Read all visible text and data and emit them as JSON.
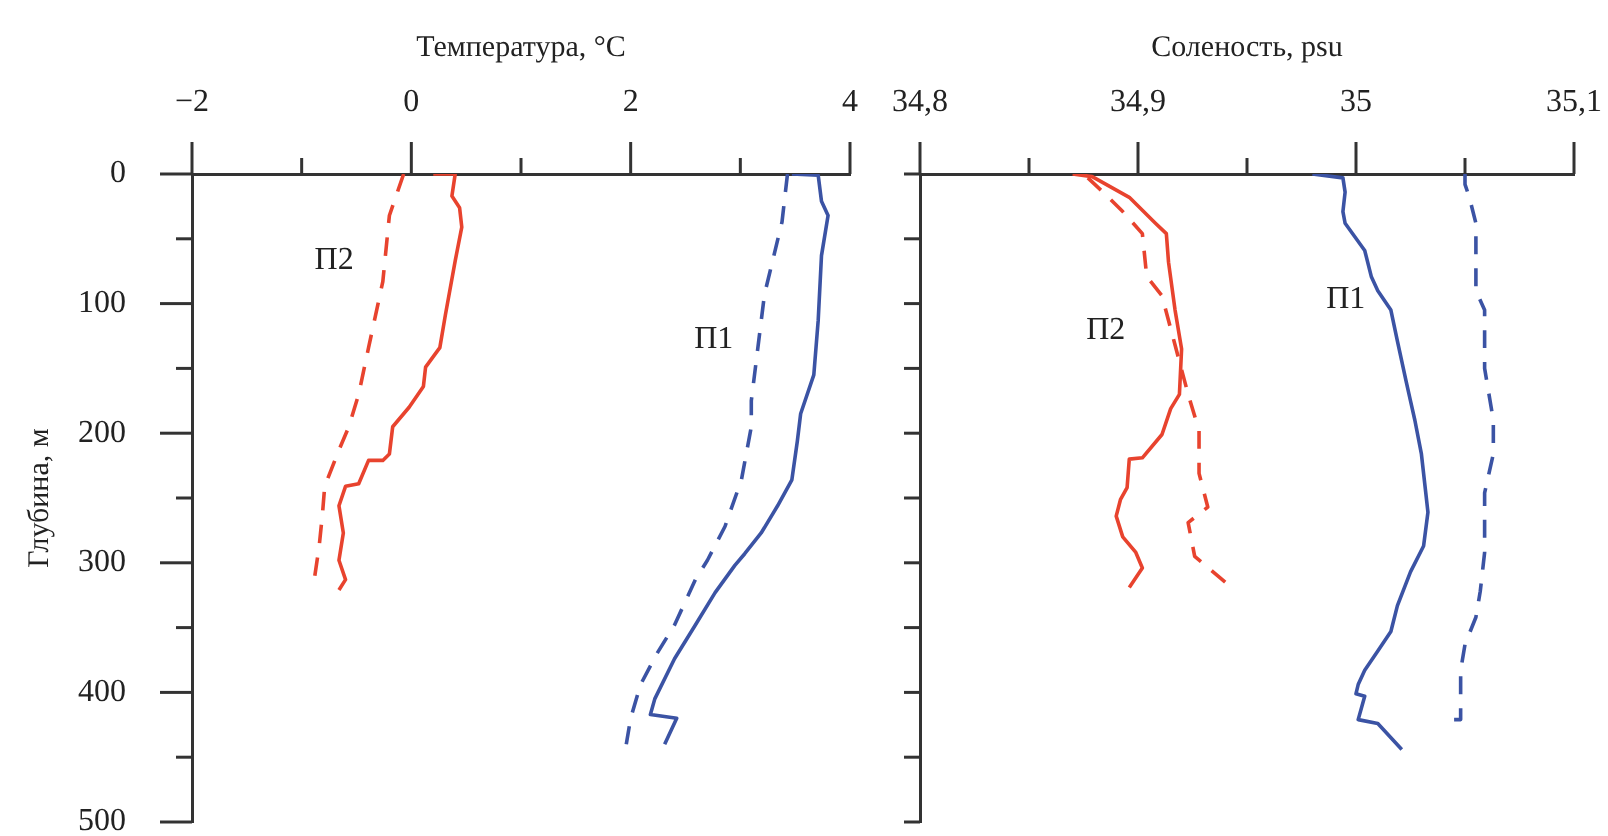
{
  "chart_data": [
    {
      "type": "line",
      "xlabel": "Температура, °C",
      "ylabel": "Глубина, м",
      "marker": "none",
      "xlim": [
        -2,
        4
      ],
      "xticks": [
        {
          "value": -2,
          "label": "−2"
        },
        {
          "value": -1,
          "label": null
        },
        0,
        {
          "value": 1,
          "label": null
        },
        2,
        {
          "value": 3,
          "label": null
        },
        4
      ],
      "ylim": [
        500,
        0
      ],
      "yticks": [
        0,
        {
          "value": 50,
          "label": null
        },
        100,
        {
          "value": 150,
          "label": null
        },
        200,
        {
          "value": 250,
          "label": null
        },
        300,
        {
          "value": 350,
          "label": null
        },
        400,
        {
          "value": 450,
          "label": null
        },
        500
      ],
      "series": [
        {
          "color": "#e8432e",
          "line_style": "solid",
          "x": [
            0.2,
            0.4,
            0.37,
            0.44,
            0.46,
            0.4,
            0.31,
            0.26,
            0.13,
            0.11,
            -0.02,
            -0.17,
            -0.2,
            -0.26,
            -0.39,
            -0.48,
            -0.6,
            -0.66,
            -0.62,
            -0.66,
            -0.6,
            -0.66
          ],
          "values": [
            0,
            0,
            17,
            26,
            41,
            67,
            109,
            134,
            149,
            164,
            180,
            195,
            216,
            221,
            221,
            239,
            241,
            256,
            277,
            298,
            313,
            321
          ]
        },
        {
          "color": "#e8432e",
          "line_style": "dashed",
          "x": [
            -0.07,
            -0.2,
            -0.26,
            -0.39,
            -0.48,
            -0.57,
            -0.66,
            -0.79,
            -0.81,
            -0.84,
            -0.88
          ],
          "values": [
            0,
            32,
            83,
            134,
            170,
            195,
            213,
            241,
            262,
            287,
            310
          ]
        },
        {
          "color": "#3b53a4",
          "line_style": "solid",
          "x": [
            3.47,
            3.71,
            3.74,
            3.8,
            3.74,
            3.71,
            3.67,
            3.55,
            3.52,
            3.47,
            3.34,
            3.19,
            3.04,
            2.95,
            2.77,
            2.59,
            2.4,
            2.22,
            2.18,
            2.42,
            2.31
          ],
          "values": [
            0,
            1,
            21,
            32,
            63,
            113,
            155,
            185,
            206,
            236,
            256,
            277,
            293,
            302,
            323,
            348,
            374,
            405,
            417,
            420,
            440
          ]
        },
        {
          "color": "#3b53a4",
          "line_style": "dashed",
          "x": [
            3.43,
            3.38,
            3.22,
            3.1,
            3.1,
            3.01,
            2.86,
            2.7,
            2.59,
            2.4,
            2.24,
            2.09,
            2.0,
            1.96
          ],
          "values": [
            0,
            37,
            93,
            175,
            195,
            236,
            272,
            298,
            313,
            348,
            370,
            394,
            420,
            440
          ]
        }
      ],
      "annotations": [
        "П2",
        "П1"
      ]
    },
    {
      "type": "line",
      "xlabel": "Соленость, psu",
      "marker": "none",
      "tick_labels": "x",
      "xlim": [
        34.8,
        35.1
      ],
      "xticks": [
        {
          "value": 34.8,
          "label": "34,8"
        },
        {
          "value": 34.85,
          "label": null
        },
        {
          "value": 34.9,
          "label": "34,9"
        },
        {
          "value": 34.95,
          "label": null
        },
        35,
        {
          "value": 35.05,
          "label": null
        },
        {
          "value": 35.1,
          "label": "35,1"
        }
      ],
      "ylim": [
        500,
        0
      ],
      "yticks": [
        {
          "value": 0,
          "label": null
        },
        {
          "value": 50,
          "label": null
        },
        {
          "value": 100,
          "label": null
        },
        {
          "value": 150,
          "label": null
        },
        {
          "value": 200,
          "label": null
        },
        {
          "value": 250,
          "label": null
        },
        {
          "value": 300,
          "label": null
        },
        {
          "value": 350,
          "label": null
        },
        {
          "value": 400,
          "label": null
        },
        {
          "value": 450,
          "label": null
        },
        {
          "value": 500,
          "label": null
        }
      ],
      "series": [
        {
          "color": "#e8432e",
          "line_style": "solid",
          "x": [
            34.87,
            34.879,
            34.896,
            34.908,
            34.913,
            34.914,
            34.917,
            34.92,
            34.919,
            34.915,
            34.911,
            34.902,
            34.896,
            34.895,
            34.892,
            34.89,
            34.893,
            34.899,
            34.902,
            34.896
          ],
          "values": [
            0,
            2,
            18,
            38,
            46,
            68,
            105,
            135,
            170,
            181,
            201,
            219,
            220,
            242,
            251,
            264,
            280,
            292,
            304,
            319
          ]
        },
        {
          "color": "#e8432e",
          "line_style": "dashed",
          "x": [
            34.877,
            34.884,
            34.893,
            34.902,
            34.904,
            34.911,
            34.917,
            34.923,
            34.928,
            34.928,
            34.932,
            34.923,
            34.926,
            34.94
          ],
          "values": [
            3,
            14,
            29,
            46,
            79,
            94,
            132,
            170,
            198,
            231,
            257,
            269,
            295,
            315
          ]
        },
        {
          "color": "#3b53a4",
          "line_style": "solid",
          "x": [
            34.98,
            34.994,
            34.995,
            34.994,
            34.995,
            35.004,
            35.007,
            35.01,
            35.016,
            35.019,
            35.023,
            35.025,
            35.027,
            35.03,
            35.032,
            35.033,
            35.031,
            35.025,
            35.019,
            35.016,
            35.01,
            35.004,
            35.001,
            35.0,
            35.004,
            35.001,
            35.01,
            35.021
          ],
          "values": [
            0,
            3,
            14,
            29,
            38,
            59,
            79,
            90,
            105,
            129,
            160,
            175,
            190,
            216,
            246,
            261,
            287,
            307,
            333,
            353,
            368,
            383,
            394,
            401,
            403,
            421,
            424,
            444
          ]
        },
        {
          "color": "#3b53a4",
          "line_style": "dashed",
          "x": [
            35.05,
            35.05,
            35.052,
            35.055,
            35.055,
            35.055,
            35.059,
            35.059,
            35.059,
            35.063,
            35.063,
            35.059,
            35.059,
            35.057,
            35.055,
            35.05,
            35.048,
            35.048,
            35.045
          ],
          "values": [
            0,
            8,
            18,
            38,
            53,
            90,
            105,
            120,
            150,
            190,
            216,
            246,
            292,
            322,
            342,
            363,
            383,
            421,
            421
          ]
        }
      ],
      "annotations": [
        "П2",
        "П1"
      ]
    }
  ]
}
